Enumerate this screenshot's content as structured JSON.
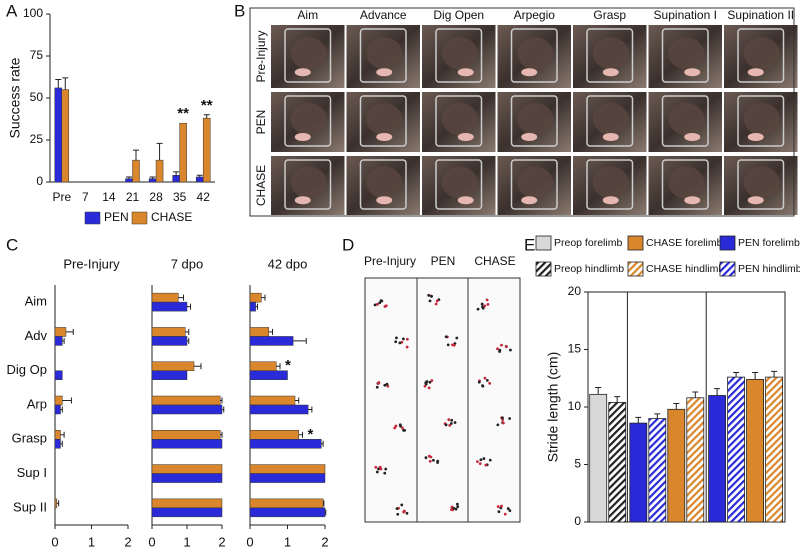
{
  "panel_labels": [
    "A",
    "B",
    "C",
    "D",
    "E"
  ],
  "photo_grid": {
    "columns": [
      "Aim",
      "Advance",
      "Dig Open",
      "Arpegio",
      "Grasp",
      "Supination I",
      "Supination II"
    ],
    "rows": [
      "Pre-Injury",
      "PEN",
      "CHASE"
    ]
  },
  "footprints": {
    "columns": [
      "Pre-Injury",
      "PEN",
      "CHASE"
    ]
  },
  "chart_data": [
    {
      "type": "bar",
      "ylabel": "Success rate",
      "categories": [
        "Pre",
        "7",
        "14",
        "21",
        "28",
        "35",
        "42"
      ],
      "series": [
        {
          "name": "PEN",
          "color": "#2a2ad8",
          "values": [
            56,
            0,
            0,
            2,
            2,
            4,
            3
          ],
          "errors": [
            5,
            0,
            0,
            1,
            1,
            2,
            1
          ]
        },
        {
          "name": "CHASE",
          "color": "#d9862c",
          "values": [
            55,
            0,
            0,
            13,
            13,
            35,
            38
          ],
          "errors": [
            7,
            0,
            0,
            6,
            10,
            0,
            2
          ],
          "annotations": [
            null,
            null,
            null,
            null,
            null,
            "**",
            "**"
          ]
        }
      ],
      "ylim": [
        0,
        100
      ],
      "yticks": [
        0,
        25,
        50,
        75,
        100
      ],
      "legend": "bottom"
    },
    {
      "type": "barh",
      "title": "Pre-Injury",
      "categories": [
        "Aim",
        "Adv",
        "Dig Op",
        "Arp",
        "Grasp",
        "Sup I",
        "Sup II"
      ],
      "series": [
        {
          "color": "#d9862c",
          "values": [
            0,
            0.3,
            0,
            0.2,
            0.15,
            0,
            0.05
          ],
          "errors": [
            0,
            0.2,
            0,
            0.25,
            0.1,
            0,
            0.05
          ]
        },
        {
          "color": "#2a2ad8",
          "values": [
            0,
            0.2,
            0.2,
            0.15,
            0.15,
            0,
            0
          ],
          "errors": [
            0,
            0.05,
            0,
            0.05,
            0.05,
            0,
            0
          ]
        }
      ],
      "xlim": [
        0,
        2
      ],
      "xticks": [
        0,
        1,
        2
      ]
    },
    {
      "type": "barh",
      "title": "7 dpo",
      "series": [
        {
          "color": "#d9862c",
          "values": [
            0.75,
            0.95,
            1.2,
            1.95,
            1.95,
            2,
            2
          ],
          "errors": [
            0.15,
            0.1,
            0.2,
            0.05,
            0.05,
            0,
            0
          ]
        },
        {
          "color": "#2a2ad8",
          "values": [
            1.0,
            1.0,
            1.0,
            2.0,
            2.0,
            2,
            2
          ],
          "errors": [
            0.1,
            0.05,
            0,
            0.05,
            0,
            0,
            0
          ]
        }
      ],
      "xlim": [
        0,
        2
      ],
      "xticks": [
        0,
        1,
        2
      ]
    },
    {
      "type": "barh",
      "title": "42 dpo",
      "series": [
        {
          "color": "#d9862c",
          "values": [
            0.3,
            0.5,
            0.7,
            1.2,
            1.3,
            2,
            1.95
          ],
          "errors": [
            0.1,
            0.1,
            0.1,
            0.1,
            0.1,
            0,
            0.02
          ],
          "annotations": [
            null,
            null,
            "*",
            null,
            "*",
            null,
            null
          ]
        },
        {
          "color": "#2a2ad8",
          "values": [
            0.15,
            1.15,
            1.0,
            1.55,
            1.9,
            2,
            2
          ],
          "errors": [
            0.05,
            0.35,
            0,
            0.1,
            0.05,
            0,
            0.02
          ]
        }
      ],
      "xlim": [
        0,
        2
      ],
      "xticks": [
        0,
        1,
        2
      ]
    },
    {
      "type": "groupbar",
      "ylabel": "Stride length (cm)",
      "categories": [
        null,
        null,
        null
      ],
      "series": [
        {
          "name": "Preop forelimb",
          "color": "#d8d8d8",
          "hatch": false,
          "values": [
            11.1,
            null,
            null
          ],
          "errors": [
            0.6,
            null,
            null
          ]
        },
        {
          "name": "Preop hindlimb",
          "color": "#222222",
          "hatch": true,
          "values": [
            10.4,
            null,
            null
          ],
          "errors": [
            0.5,
            null,
            null
          ]
        },
        {
          "name": "CHASE forelimb",
          "color": "#d9862c",
          "hatch": false,
          "values": [
            null,
            9.8,
            12.4
          ],
          "errors": [
            null,
            0.5,
            0.6
          ]
        },
        {
          "name": "CHASE hindlimb",
          "color": "#d9862c",
          "hatch": true,
          "values": [
            null,
            10.8,
            12.6
          ],
          "errors": [
            null,
            0.5,
            0.5
          ]
        },
        {
          "name": "PEN forelimb",
          "color": "#2a2ad8",
          "hatch": false,
          "values": [
            null,
            8.6,
            11.0
          ],
          "errors": [
            null,
            0.5,
            0.6
          ]
        },
        {
          "name": "PEN hindlimb",
          "color": "#2a2ad8",
          "hatch": true,
          "values": [
            null,
            9.0,
            12.6
          ],
          "errors": [
            null,
            0.4,
            0.4
          ]
        }
      ],
      "ylim": [
        0,
        20
      ],
      "yticks": [
        0,
        5,
        10,
        15,
        20
      ],
      "legend": "top"
    }
  ]
}
